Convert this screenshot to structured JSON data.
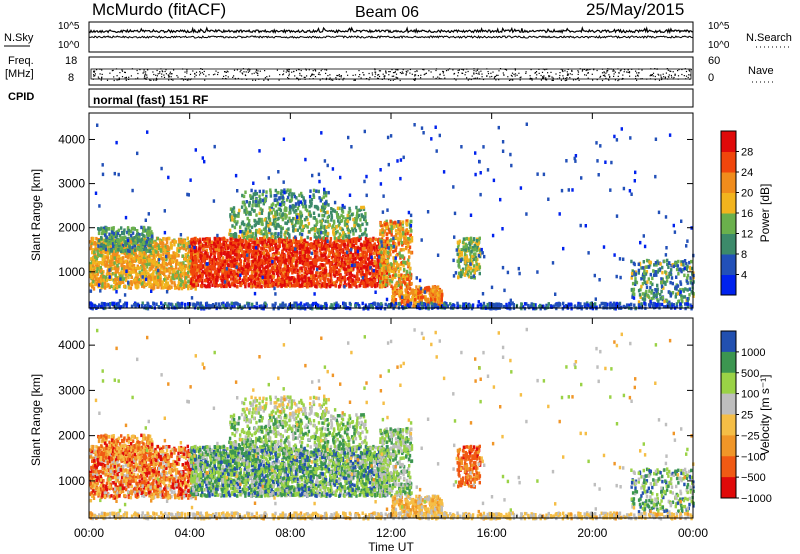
{
  "header": {
    "station": "McMurdo (fitACF)",
    "beam": "Beam 06",
    "date": "25/May/2015",
    "mode": "normal (fast) 151 RF"
  },
  "left_labels": {
    "nsky": "N.Sky",
    "freq_line1": "Freq.",
    "freq_line2": "[MHz]",
    "cpid": "CPID",
    "nsky_top": "10^5",
    "nsky_bottom": "10^0",
    "freq_top": "18",
    "freq_bottom": "8"
  },
  "right_labels": {
    "nsearch": "N.Search",
    "nave": "Nave",
    "nsearch_top": "10^5",
    "nsearch_bottom": "10^0",
    "nave_top": "60",
    "nave_bottom": "0"
  },
  "colors": {
    "power": [
      "#0022ee",
      "#2250b8",
      "#3c8a6a",
      "#6ab04c",
      "#f2b41e",
      "#f08c1c",
      "#f0460c",
      "#e00a0a"
    ],
    "velocity": [
      "#e00a0a",
      "#f05a14",
      "#f09628",
      "#f5be46",
      "#bebebe",
      "#9ad246",
      "#3c9650",
      "#2250b0"
    ]
  },
  "chart_data": [
    {
      "type": "heatmap",
      "panel": "power",
      "ylabel": "Slant Range [km]",
      "x_ticks": [
        "00:00",
        "04:00",
        "08:00",
        "12:00",
        "16:00",
        "20:00",
        "00:00"
      ],
      "y_ticks": [
        1000,
        2000,
        3000,
        4000
      ],
      "xlim_hours": [
        0,
        24
      ],
      "ylim_km": [
        180,
        4600
      ],
      "colorbar_label": "Power [dB]",
      "colorbar_ticks": [
        "4",
        "8",
        "12",
        "16",
        "20",
        "24",
        "28"
      ],
      "colorbar_range": [
        0,
        32
      ]
    },
    {
      "type": "heatmap",
      "panel": "velocity",
      "ylabel": "Slant Range [km]",
      "xlabel": "Time UT",
      "x_ticks": [
        "00:00",
        "04:00",
        "08:00",
        "12:00",
        "16:00",
        "20:00",
        "00:00"
      ],
      "y_ticks": [
        1000,
        2000,
        3000,
        4000
      ],
      "xlim_hours": [
        0,
        24
      ],
      "ylim_km": [
        180,
        4600
      ],
      "colorbar_label": "Velocity [m s⁻¹]",
      "colorbar_ticks": [
        "1000",
        "500",
        "100",
        "25",
        "−25",
        "−100",
        "−500",
        "−1000"
      ]
    }
  ]
}
